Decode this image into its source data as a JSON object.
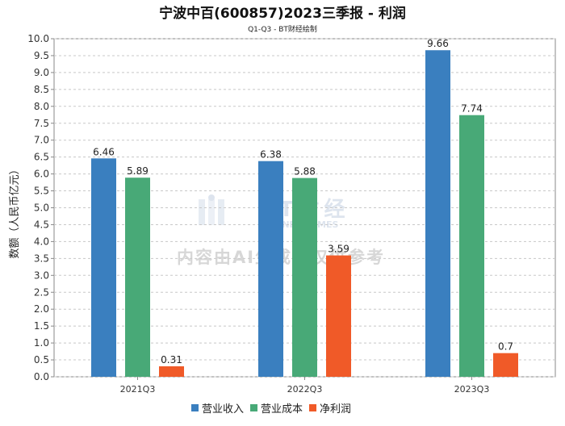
{
  "chart_data": {
    "type": "bar",
    "title": "宁波中百(600857)2023三季报 - 利润",
    "subtitle": "Q1-Q3 - BT财经绘制",
    "xlabel": "",
    "ylabel": "数额（人民币亿元）",
    "categories": [
      "2021Q3",
      "2022Q3",
      "2023Q3"
    ],
    "series": [
      {
        "name": "营业收入",
        "color": "#3a7fbf",
        "values": [
          6.46,
          6.38,
          9.66
        ]
      },
      {
        "name": "营业成本",
        "color": "#48a977",
        "values": [
          5.89,
          5.88,
          7.74
        ]
      },
      {
        "name": "净利润",
        "color": "#f05a28",
        "values": [
          0.31,
          3.59,
          0.7
        ]
      }
    ],
    "data_labels": [
      [
        "6.46",
        "6.38",
        "9.66"
      ],
      [
        "5.89",
        "5.88",
        "7.74"
      ],
      [
        "0.31",
        "3.59",
        "0.7"
      ]
    ],
    "ylim": [
      0,
      10.0
    ],
    "yticks": [
      "0.0",
      "0.5",
      "1.0",
      "1.5",
      "2.0",
      "2.5",
      "3.0",
      "3.5",
      "4.0",
      "4.5",
      "5.0",
      "5.5",
      "6.0",
      "6.5",
      "7.0",
      "7.5",
      "8.0",
      "8.5",
      "9.0",
      "9.5",
      "10.0"
    ],
    "grid": true,
    "legend": "bottom-center",
    "watermark": {
      "logo_text": "BT财经",
      "logo_sub": "BUSINESSTIMES",
      "notice": "内容由AI生成，仅供参考"
    }
  }
}
